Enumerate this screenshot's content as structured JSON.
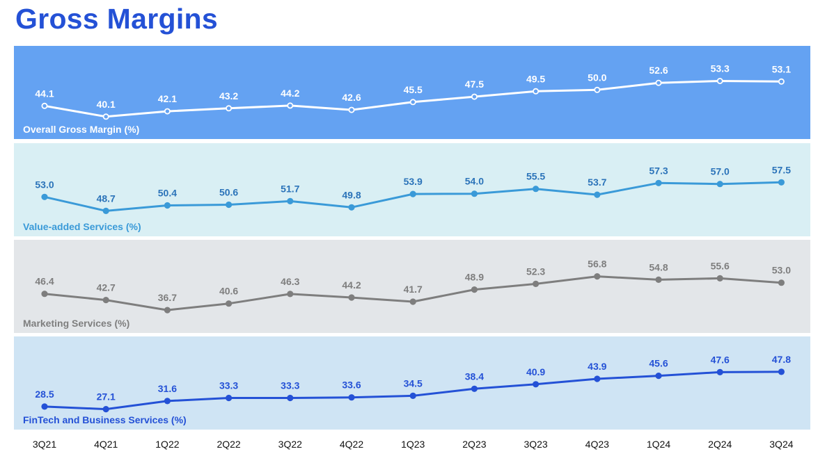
{
  "page": {
    "title": "Gross Margins"
  },
  "chart_data": {
    "type": "line",
    "categories": [
      "3Q21",
      "4Q21",
      "1Q22",
      "2Q22",
      "3Q22",
      "4Q22",
      "1Q23",
      "2Q23",
      "3Q23",
      "4Q23",
      "1Q24",
      "2Q24",
      "3Q24"
    ],
    "grid": false,
    "panels": [
      {
        "name": "Overall Gross Margin (%)",
        "values": [
          44.1,
          40.1,
          42.1,
          43.2,
          44.2,
          42.6,
          45.5,
          47.5,
          49.5,
          50.0,
          52.6,
          53.3,
          53.1
        ],
        "ylim": [
          38,
          56
        ],
        "background": "#64a2f2",
        "line_color": "#ffffff",
        "marker": "hollow",
        "label_color": "#ffffff",
        "value_color": "#ffffff"
      },
      {
        "name": "Value-added Services (%)",
        "values": [
          53.0,
          48.7,
          50.4,
          50.6,
          51.7,
          49.8,
          53.9,
          54.0,
          55.5,
          53.7,
          57.3,
          57.0,
          57.5
        ],
        "ylim": [
          46,
          61
        ],
        "background": "#d9eff4",
        "line_color": "#3a9ad8",
        "marker": "filled",
        "label_color": "#3a9ad8",
        "value_color": "#2b73b9"
      },
      {
        "name": "Marketing Services (%)",
        "values": [
          46.4,
          42.7,
          36.7,
          40.6,
          46.3,
          44.2,
          41.7,
          48.9,
          52.3,
          56.8,
          54.8,
          55.6,
          53.0
        ],
        "ylim": [
          33,
          62
        ],
        "background": "#e3e6e9",
        "line_color": "#7e7e7e",
        "marker": "filled",
        "label_color": "#7e7e7e",
        "value_color": "#7e7e7e"
      },
      {
        "name": "FinTech and Business Services (%)",
        "values": [
          28.5,
          27.1,
          31.6,
          33.3,
          33.3,
          33.6,
          34.5,
          38.4,
          40.9,
          43.9,
          45.6,
          47.6,
          47.8
        ],
        "ylim": [
          25,
          52
        ],
        "background": "#cfe4f4",
        "line_color": "#2451d6",
        "marker": "filled",
        "label_color": "#2451d6",
        "value_color": "#2451d6"
      }
    ]
  }
}
